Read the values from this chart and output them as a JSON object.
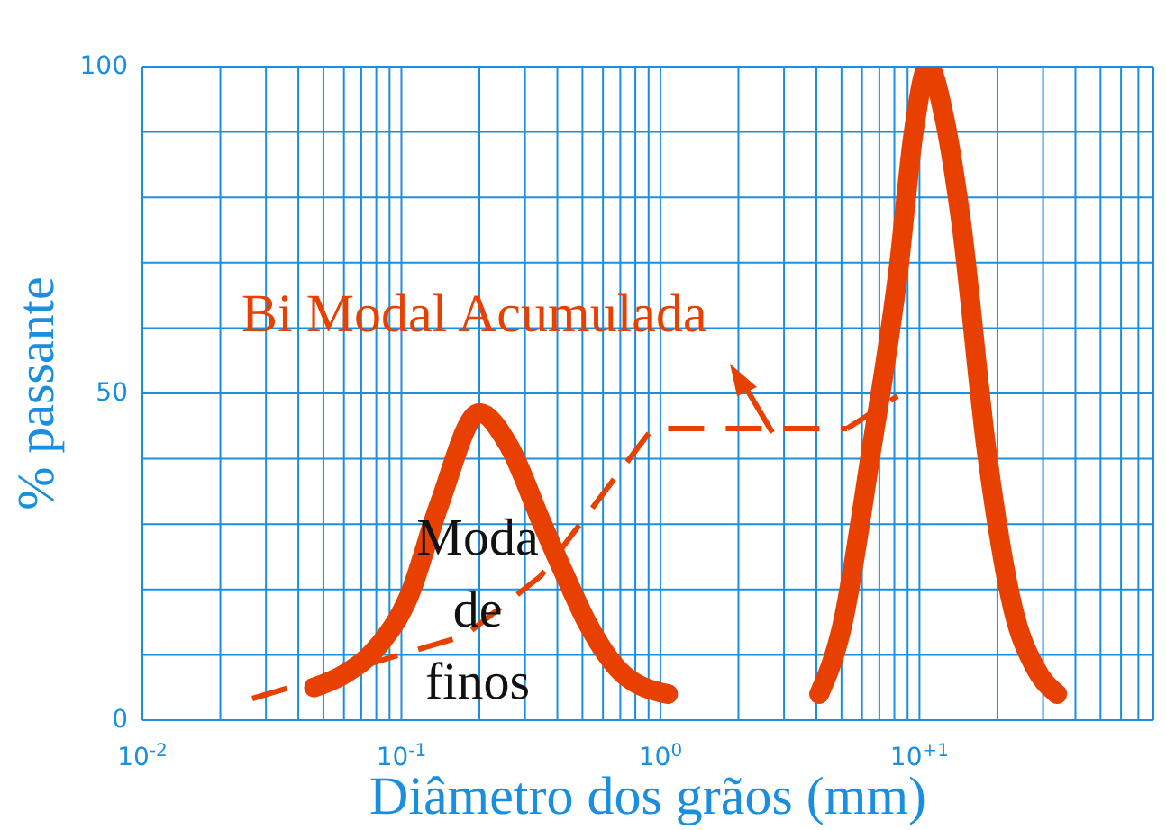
{
  "chart_data": {
    "type": "line",
    "xlabel": "Diâmetro dos grãos (mm)",
    "ylabel": "% passante",
    "annotations": [
      "Bi Modal Acumulada",
      "Moda de finos"
    ],
    "log": "x",
    "grid": true,
    "marker": "none",
    "line_style": "solid",
    "xlim": [
      0.01,
      80
    ],
    "xticks": [
      {
        "value": 0.01,
        "label": "10$^{-2}$"
      },
      {
        "value": 0.02,
        "label": null
      },
      {
        "value": 0.03,
        "label": null
      },
      {
        "value": 0.04,
        "label": null
      },
      {
        "value": 0.05,
        "label": null
      },
      {
        "value": 0.06,
        "label": null
      },
      {
        "value": 0.07,
        "label": null
      },
      {
        "value": 0.08,
        "label": null
      },
      {
        "value": 0.09,
        "label": null
      },
      {
        "value": 0.1,
        "label": "10$^{-1}$"
      },
      {
        "value": 0.2,
        "label": null
      },
      {
        "value": 0.3,
        "label": null
      },
      {
        "value": 0.4,
        "label": null
      },
      {
        "value": 0.5,
        "label": null
      },
      {
        "value": 0.6,
        "label": null
      },
      {
        "value": 0.7,
        "label": null
      },
      {
        "value": 0.8,
        "label": null
      },
      {
        "value": 0.9,
        "label": null
      },
      {
        "value": 1,
        "label": "10$^{0}$"
      },
      {
        "value": 2,
        "label": null
      },
      {
        "value": 3,
        "label": null
      },
      {
        "value": 4,
        "label": null
      },
      {
        "value": 5,
        "label": null
      },
      {
        "value": 6,
        "label": null
      },
      {
        "value": 7,
        "label": null
      },
      {
        "value": 8,
        "label": null
      },
      {
        "value": 9,
        "label": null
      },
      {
        "value": 10,
        "label": "10$^{+1}$"
      },
      {
        "value": 20,
        "label": null
      },
      {
        "value": 30,
        "label": null
      },
      {
        "value": 40,
        "label": null
      },
      {
        "value": 50,
        "label": null
      },
      {
        "value": 60,
        "label": null
      },
      {
        "value": 70,
        "label": null
      },
      {
        "value": 80,
        "label": null
      }
    ],
    "ylim": [
      0,
      100
    ],
    "yticks": [
      0,
      {
        "value": 10,
        "label": null
      },
      {
        "value": 20,
        "label": null
      },
      {
        "value": 30,
        "label": null
      },
      {
        "value": 40,
        "label": null
      },
      50,
      {
        "value": 60,
        "label": null
      },
      {
        "value": 70,
        "label": null
      },
      {
        "value": 80,
        "label": null
      },
      {
        "value": 90,
        "label": null
      },
      100
    ],
    "series": [
      {
        "color": "#e84000",
        "x": [
          0.046,
          0.06,
          0.08,
          0.107,
          0.14,
          0.2,
          0.26,
          0.35,
          0.43,
          0.52,
          0.72,
          1.07
        ],
        "values": [
          5,
          7,
          11,
          19,
          33,
          47,
          42,
          30,
          22,
          15,
          7,
          4
        ]
      },
      {
        "color": "#e84000",
        "x": [
          4.1,
          5,
          6.5,
          8.3,
          9.5,
          10.8,
          12.5,
          14.4,
          18.2,
          23,
          28,
          34
        ],
        "values": [
          4,
          14,
          41,
          69,
          90,
          100,
          92,
          77,
          41,
          17,
          8,
          4
        ]
      }
    ]
  }
}
